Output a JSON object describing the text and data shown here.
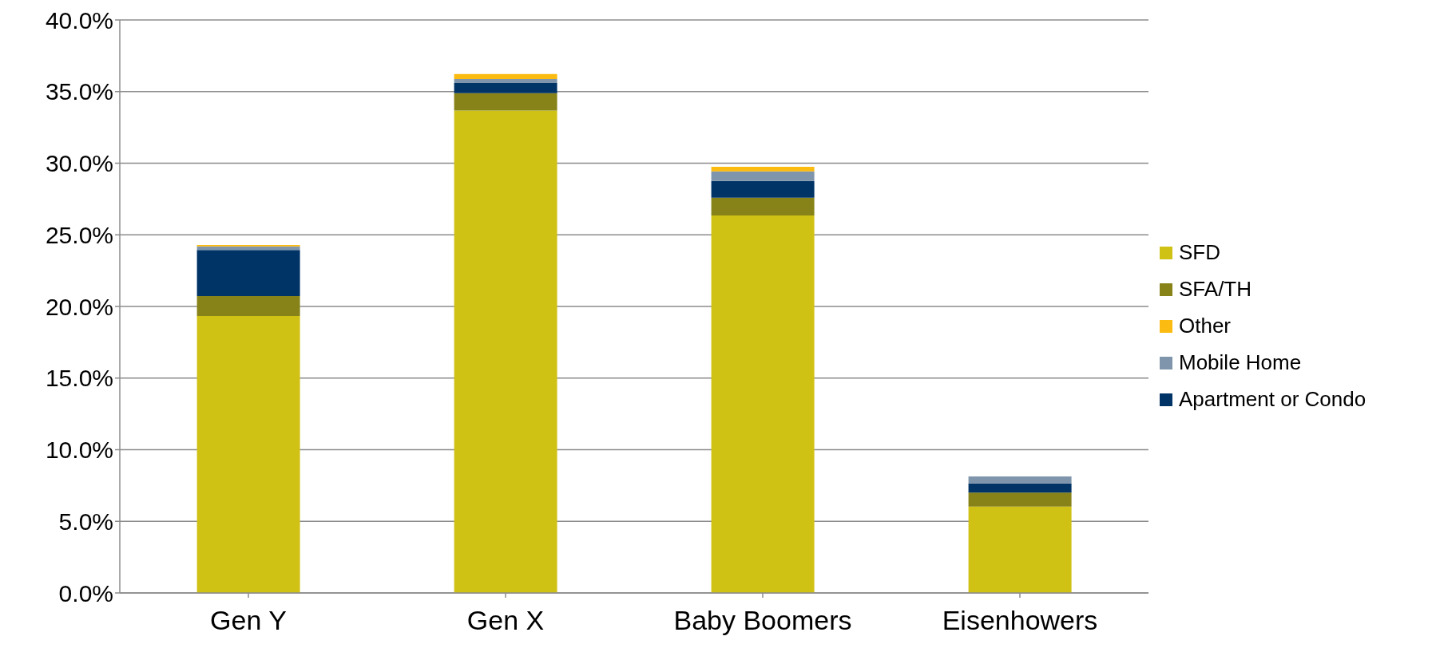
{
  "chart_data": {
    "type": "bar",
    "stacked": true,
    "categories": [
      "Gen Y",
      "Gen X",
      "Baby Boomers",
      "Eisenhowers"
    ],
    "series": [
      {
        "name": "SFD",
        "color": "#d0c215",
        "values": [
          19.33,
          33.67,
          26.35,
          6.03
        ]
      },
      {
        "name": "SFA/TH",
        "color": "#878318",
        "values": [
          1.39,
          1.22,
          1.24,
          0.97
        ]
      },
      {
        "name": "Apartment or Condo",
        "color": "#003366",
        "values": [
          3.22,
          0.71,
          1.17,
          0.65
        ]
      },
      {
        "name": "Mobile Home",
        "color": "#7f95ab",
        "values": [
          0.25,
          0.28,
          0.67,
          0.48
        ]
      },
      {
        "name": "Other",
        "color": "#fbbb10",
        "values": [
          0.1,
          0.35,
          0.32,
          0
        ]
      }
    ],
    "ylim": [
      0,
      40
    ],
    "yticks": [
      {
        "value": 0,
        "label": "0.0%"
      },
      {
        "value": 5,
        "label": "5.0%"
      },
      {
        "value": 10,
        "label": "10.0%"
      },
      {
        "value": 15,
        "label": "15.0%"
      },
      {
        "value": 20,
        "label": "20.0%"
      },
      {
        "value": 25,
        "label": "25.0%"
      },
      {
        "value": 30,
        "label": "30.0%"
      },
      {
        "value": 35,
        "label": "35.0%"
      },
      {
        "value": 40,
        "label": "40.0%"
      }
    ],
    "grid": "y",
    "legend": "right"
  }
}
